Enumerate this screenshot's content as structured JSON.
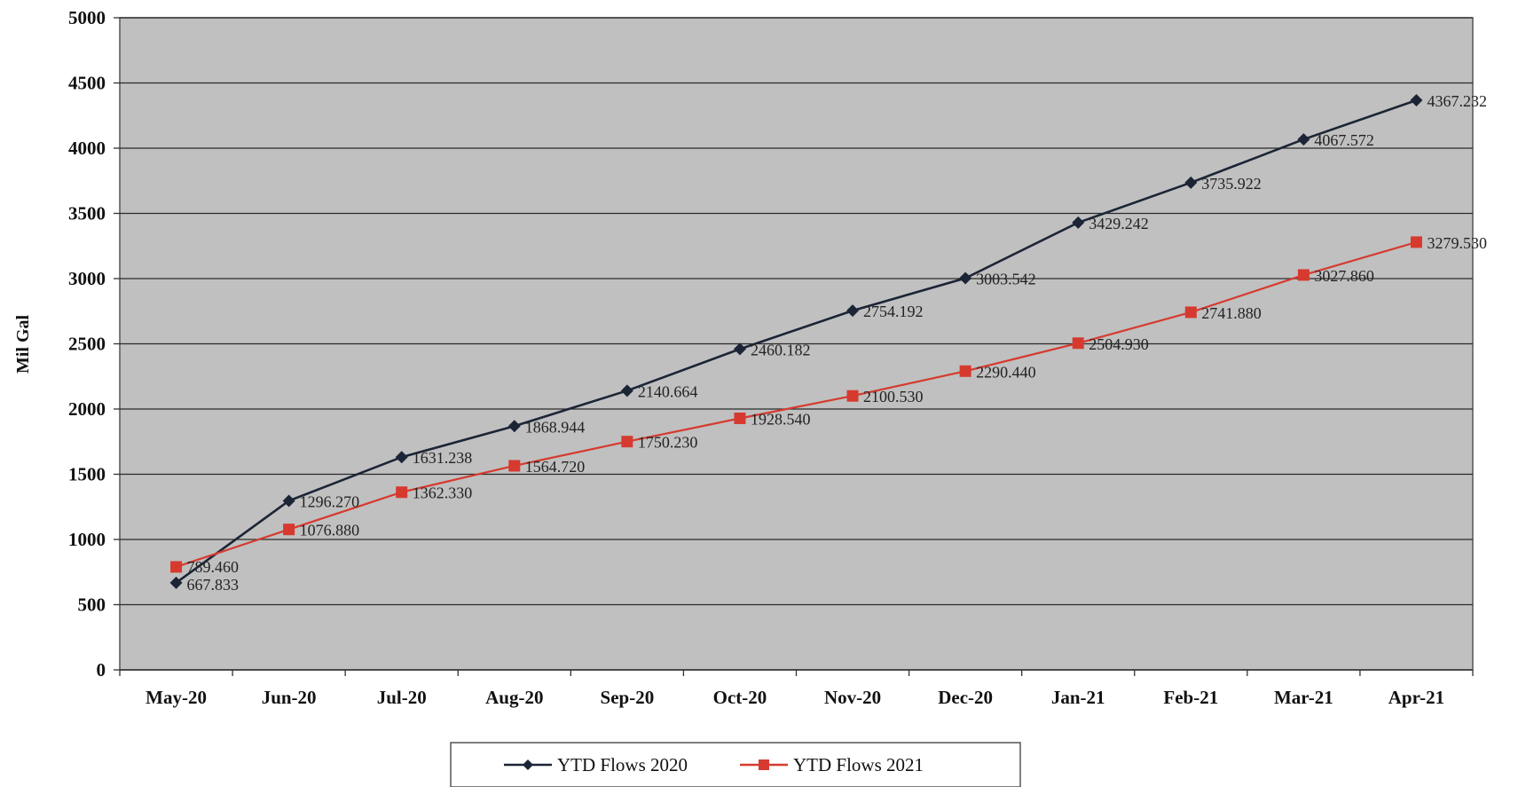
{
  "chart_data": {
    "type": "line",
    "categories": [
      "May-20",
      "Jun-20",
      "Jul-20",
      "Aug-20",
      "Sep-20",
      "Oct-20",
      "Nov-20",
      "Dec-20",
      "Jan-21",
      "Feb-21",
      "Mar-21",
      "Apr-21"
    ],
    "series": [
      {
        "name": "YTD Flows 2020",
        "color": "#1c2536",
        "marker": "diamond",
        "values": [
          667.833,
          1296.27,
          1631.238,
          1868.944,
          2140.664,
          2460.182,
          2754.192,
          3003.542,
          3429.242,
          3735.922,
          4067.572,
          4367.232
        ],
        "labels": [
          "667.833",
          "1296.270",
          "1631.238",
          "1868.944",
          "2140.664",
          "2460.182",
          "2754.192",
          "3003.542",
          "3429.242",
          "3735.922",
          "4067.572",
          "4367.232"
        ]
      },
      {
        "name": "YTD Flows 2021",
        "color": "#d63a2f",
        "marker": "square",
        "values": [
          789.46,
          1076.88,
          1362.33,
          1564.72,
          1750.23,
          1928.54,
          2100.53,
          2290.44,
          2504.93,
          2741.88,
          3027.86,
          3279.53
        ],
        "labels": [
          "789.460",
          "1076.880",
          "1362.330",
          "1564.720",
          "1750.230",
          "1928.540",
          "2100.530",
          "2290.440",
          "2504.930",
          "2741.880",
          "3027.860",
          "3279.530"
        ]
      }
    ],
    "ylabel": "Mil Gal",
    "xlabel": "",
    "ylim": [
      0,
      5000
    ],
    "yticks": [
      0,
      500,
      1000,
      1500,
      2000,
      2500,
      3000,
      3500,
      4000,
      4500,
      5000
    ],
    "plot_background": "#c0c0c0",
    "grid": true,
    "legend_position": "bottom-center"
  }
}
